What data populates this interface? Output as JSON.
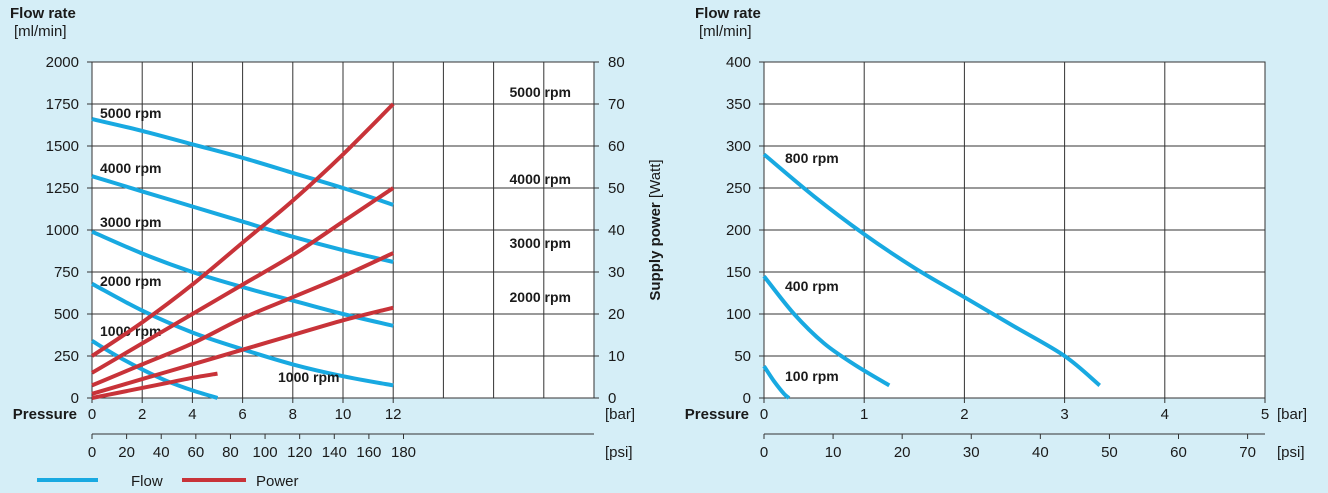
{
  "colors": {
    "background": "#d5eef7",
    "flow": "#18a9e1",
    "power": "#c83339",
    "grid": "#333333",
    "plot_bg": "#ffffff"
  },
  "legend": {
    "flow": "Flow",
    "power": "Power"
  },
  "chart_data": [
    {
      "type": "line",
      "title": "",
      "ylabel": "Flow rate",
      "ylabel_unit": "[ml/min]",
      "y2label": "Supply power",
      "y2label_unit": "[Watt]",
      "xlabel": "Pressure",
      "x_unit": "[bar]",
      "x2_unit": "[psi]",
      "xlim": [
        0,
        20
      ],
      "ylim": [
        0,
        2000
      ],
      "y2lim": [
        0,
        80
      ],
      "x_ticks": [
        "0",
        "2",
        "4",
        "6",
        "8",
        "10",
        "12"
      ],
      "x2_ticks": [
        "0",
        "20",
        "40",
        "60",
        "80",
        "100",
        "120",
        "140",
        "160",
        "180"
      ],
      "y_ticks": [
        "0",
        "250",
        "500",
        "750",
        "1000",
        "1250",
        "1500",
        "1750",
        "2000"
      ],
      "y2_ticks": [
        "0",
        "10",
        "20",
        "30",
        "40",
        "50",
        "60",
        "70",
        "80"
      ],
      "grid": true,
      "legend_position": "bottom-left",
      "series": [
        {
          "name": "5000 rpm",
          "kind": "flow",
          "axis": "left",
          "x": [
            0,
            2,
            4,
            6,
            8,
            10,
            12
          ],
          "y": [
            1660,
            1590,
            1510,
            1430,
            1340,
            1250,
            1150
          ]
        },
        {
          "name": "4000 rpm",
          "kind": "flow",
          "axis": "left",
          "x": [
            0,
            2,
            4,
            6,
            8,
            10,
            12
          ],
          "y": [
            1320,
            1230,
            1140,
            1050,
            960,
            880,
            810
          ]
        },
        {
          "name": "3000 rpm",
          "kind": "flow",
          "axis": "left",
          "x": [
            0,
            2,
            4,
            6,
            8,
            10,
            12
          ],
          "y": [
            990,
            860,
            750,
            660,
            580,
            500,
            430
          ]
        },
        {
          "name": "2000 rpm",
          "kind": "flow",
          "axis": "left",
          "x": [
            0,
            2,
            4,
            6,
            8,
            10,
            12
          ],
          "y": [
            680,
            520,
            390,
            290,
            200,
            130,
            75
          ]
        },
        {
          "name": "1000 rpm",
          "kind": "flow",
          "axis": "left",
          "x": [
            0,
            1,
            2,
            3,
            4,
            5
          ],
          "y": [
            340,
            250,
            170,
            100,
            45,
            0
          ]
        },
        {
          "name": "5000 rpm",
          "kind": "power",
          "axis": "right",
          "x": [
            0,
            2,
            4,
            6,
            8,
            10,
            12
          ],
          "y": [
            10,
            18,
            27,
            37,
            47,
            58,
            70
          ]
        },
        {
          "name": "4000 rpm",
          "kind": "power",
          "axis": "right",
          "x": [
            0,
            2,
            4,
            6,
            8,
            10,
            12
          ],
          "y": [
            6,
            13,
            20,
            27,
            34,
            42,
            50
          ]
        },
        {
          "name": "3000 rpm",
          "kind": "power",
          "axis": "right",
          "x": [
            0,
            2,
            4,
            6,
            8,
            10,
            12
          ],
          "y": [
            3,
            8,
            13,
            19,
            24,
            29,
            34.5
          ]
        },
        {
          "name": "2000 rpm",
          "kind": "power",
          "axis": "right",
          "x": [
            0,
            2,
            4,
            6,
            8,
            10,
            12
          ],
          "y": [
            1,
            4.5,
            8,
            11.5,
            15,
            18.5,
            21.5
          ]
        },
        {
          "name": "1000 rpm",
          "kind": "power",
          "axis": "right",
          "x": [
            0,
            1,
            2,
            3,
            4,
            5
          ],
          "y": [
            0,
            1.2,
            2.4,
            3.6,
            4.8,
            5.8
          ]
        }
      ]
    },
    {
      "type": "line",
      "title": "",
      "ylabel": "Flow rate",
      "ylabel_unit": "[ml/min]",
      "xlabel": "Pressure",
      "x_unit": "[bar]",
      "x2_unit": "[psi]",
      "xlim": [
        0,
        5
      ],
      "ylim": [
        0,
        400
      ],
      "x_ticks": [
        "0",
        "1",
        "2",
        "3",
        "4",
        "5"
      ],
      "x2_ticks": [
        "0",
        "10",
        "20",
        "30",
        "40",
        "50",
        "60",
        "70"
      ],
      "y_ticks": [
        "0",
        "50",
        "100",
        "150",
        "200",
        "250",
        "300",
        "350",
        "400"
      ],
      "grid": true,
      "series": [
        {
          "name": "800 rpm",
          "kind": "flow",
          "axis": "left",
          "x": [
            0,
            0.5,
            1,
            1.5,
            2,
            2.5,
            3,
            3.35
          ],
          "y": [
            290,
            240,
            195,
            155,
            120,
            85,
            50,
            15
          ]
        },
        {
          "name": "400 rpm",
          "kind": "flow",
          "axis": "left",
          "x": [
            0,
            0.3,
            0.6,
            0.9,
            1.25
          ],
          "y": [
            145,
            100,
            65,
            40,
            15
          ]
        },
        {
          "name": "100 rpm",
          "kind": "flow",
          "axis": "left",
          "x": [
            0,
            0.1,
            0.2,
            0.25
          ],
          "y": [
            38,
            20,
            5,
            0
          ]
        }
      ]
    }
  ]
}
